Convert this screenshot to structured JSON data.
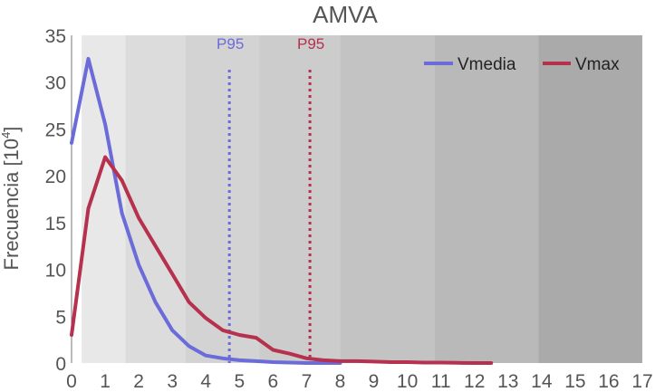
{
  "chart_data": {
    "type": "line",
    "title": "AMVA",
    "xlabel": "",
    "ylabel": "Frecuencia [10",
    "ylabel_superscript": "4",
    "ylabel_suffix": "]",
    "xlim": [
      0,
      17
    ],
    "ylim": [
      0,
      35
    ],
    "x_ticks": [
      "0",
      "1",
      "2",
      "3",
      "4",
      "5",
      "6",
      "7",
      "8",
      "9",
      "10",
      "11",
      "12",
      "13",
      "14",
      "15",
      "16",
      "17"
    ],
    "y_ticks": [
      "0",
      "5",
      "10",
      "15",
      "20",
      "25",
      "30",
      "35"
    ],
    "background_bands": [
      {
        "from": 0.3,
        "to": 1.6,
        "color": "#e8e8e8"
      },
      {
        "from": 1.6,
        "to": 3.4,
        "color": "#dcdcdc"
      },
      {
        "from": 3.4,
        "to": 5.6,
        "color": "#d3d3d3"
      },
      {
        "from": 5.6,
        "to": 8.0,
        "color": "#cccccc"
      },
      {
        "from": 8.0,
        "to": 10.8,
        "color": "#c3c3c3"
      },
      {
        "from": 10.8,
        "to": 13.9,
        "color": "#b9b9b9"
      },
      {
        "from": 13.9,
        "to": 17.0,
        "color": "#aaaaaa"
      }
    ],
    "series": [
      {
        "name": "Vmedia",
        "color": "#6b6bd9",
        "x": [
          0,
          0.5,
          1,
          1.5,
          2,
          2.5,
          3,
          3.5,
          4,
          4.5,
          5,
          5.5,
          6,
          6.5,
          7,
          7.5,
          8
        ],
        "values": [
          23.5,
          32.5,
          25.5,
          16,
          10.5,
          6.5,
          3.5,
          1.8,
          0.8,
          0.5,
          0.3,
          0.2,
          0.1,
          0.05,
          0,
          0,
          0
        ]
      },
      {
        "name": "Vmax",
        "color": "#b5314e",
        "x": [
          0,
          0.5,
          1,
          1.5,
          2,
          2.5,
          3,
          3.5,
          4,
          4.5,
          5,
          5.5,
          6,
          6.5,
          7,
          7.5,
          8,
          8.5,
          9,
          9.5,
          10,
          10.5,
          11,
          11.5,
          12,
          12.5
        ],
        "values": [
          3,
          16.5,
          22,
          19.5,
          15.5,
          12.5,
          9.5,
          6.5,
          4.8,
          3.5,
          3,
          2.7,
          1.4,
          1,
          0.5,
          0.3,
          0.2,
          0.2,
          0.15,
          0.1,
          0.1,
          0.05,
          0.05,
          0.02,
          0,
          0
        ]
      }
    ],
    "reference_lines": [
      {
        "label": "P95",
        "x": 4.7,
        "color": "#6b6bd9"
      },
      {
        "label": "P95",
        "x": 7.1,
        "color": "#b5314e"
      }
    ],
    "legend": {
      "placement": "top-right",
      "entries": [
        "Vmedia",
        "Vmax"
      ]
    }
  }
}
